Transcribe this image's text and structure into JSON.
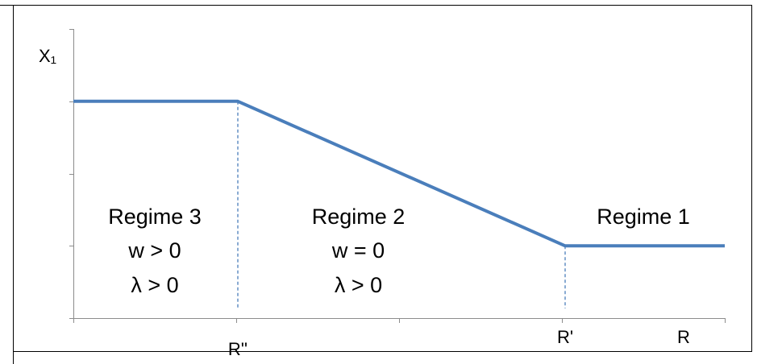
{
  "chart_data": {
    "type": "line",
    "title": "",
    "ylabel": "X₁",
    "xlabel": "R",
    "x_ticks": [
      "R''",
      "R'"
    ],
    "xlim": [
      0,
      4
    ],
    "ylim": [
      0,
      3
    ],
    "grid": false,
    "series": [
      {
        "color": "#4a7ebb",
        "points": [
          {
            "x": 0,
            "y": 3
          },
          {
            "x": 1.01,
            "y": 3
          },
          {
            "x": 3.02,
            "y": 1
          },
          {
            "x": 4,
            "y": 1
          }
        ]
      }
    ],
    "dividers": [
      {
        "x": 1.01,
        "y_top": 3
      },
      {
        "x": 3.02,
        "y_top": 1
      }
    ],
    "annotations": [
      {
        "name": "regime-3",
        "x": 0.5,
        "lines": [
          "Regime 3",
          "w > 0",
          "λ > 0"
        ]
      },
      {
        "name": "regime-2",
        "x": 1.75,
        "lines": [
          "Regime 2",
          "w = 0",
          "λ > 0"
        ]
      },
      {
        "name": "regime-1",
        "x": 3.5,
        "lines": [
          "Regime 1"
        ]
      }
    ]
  }
}
